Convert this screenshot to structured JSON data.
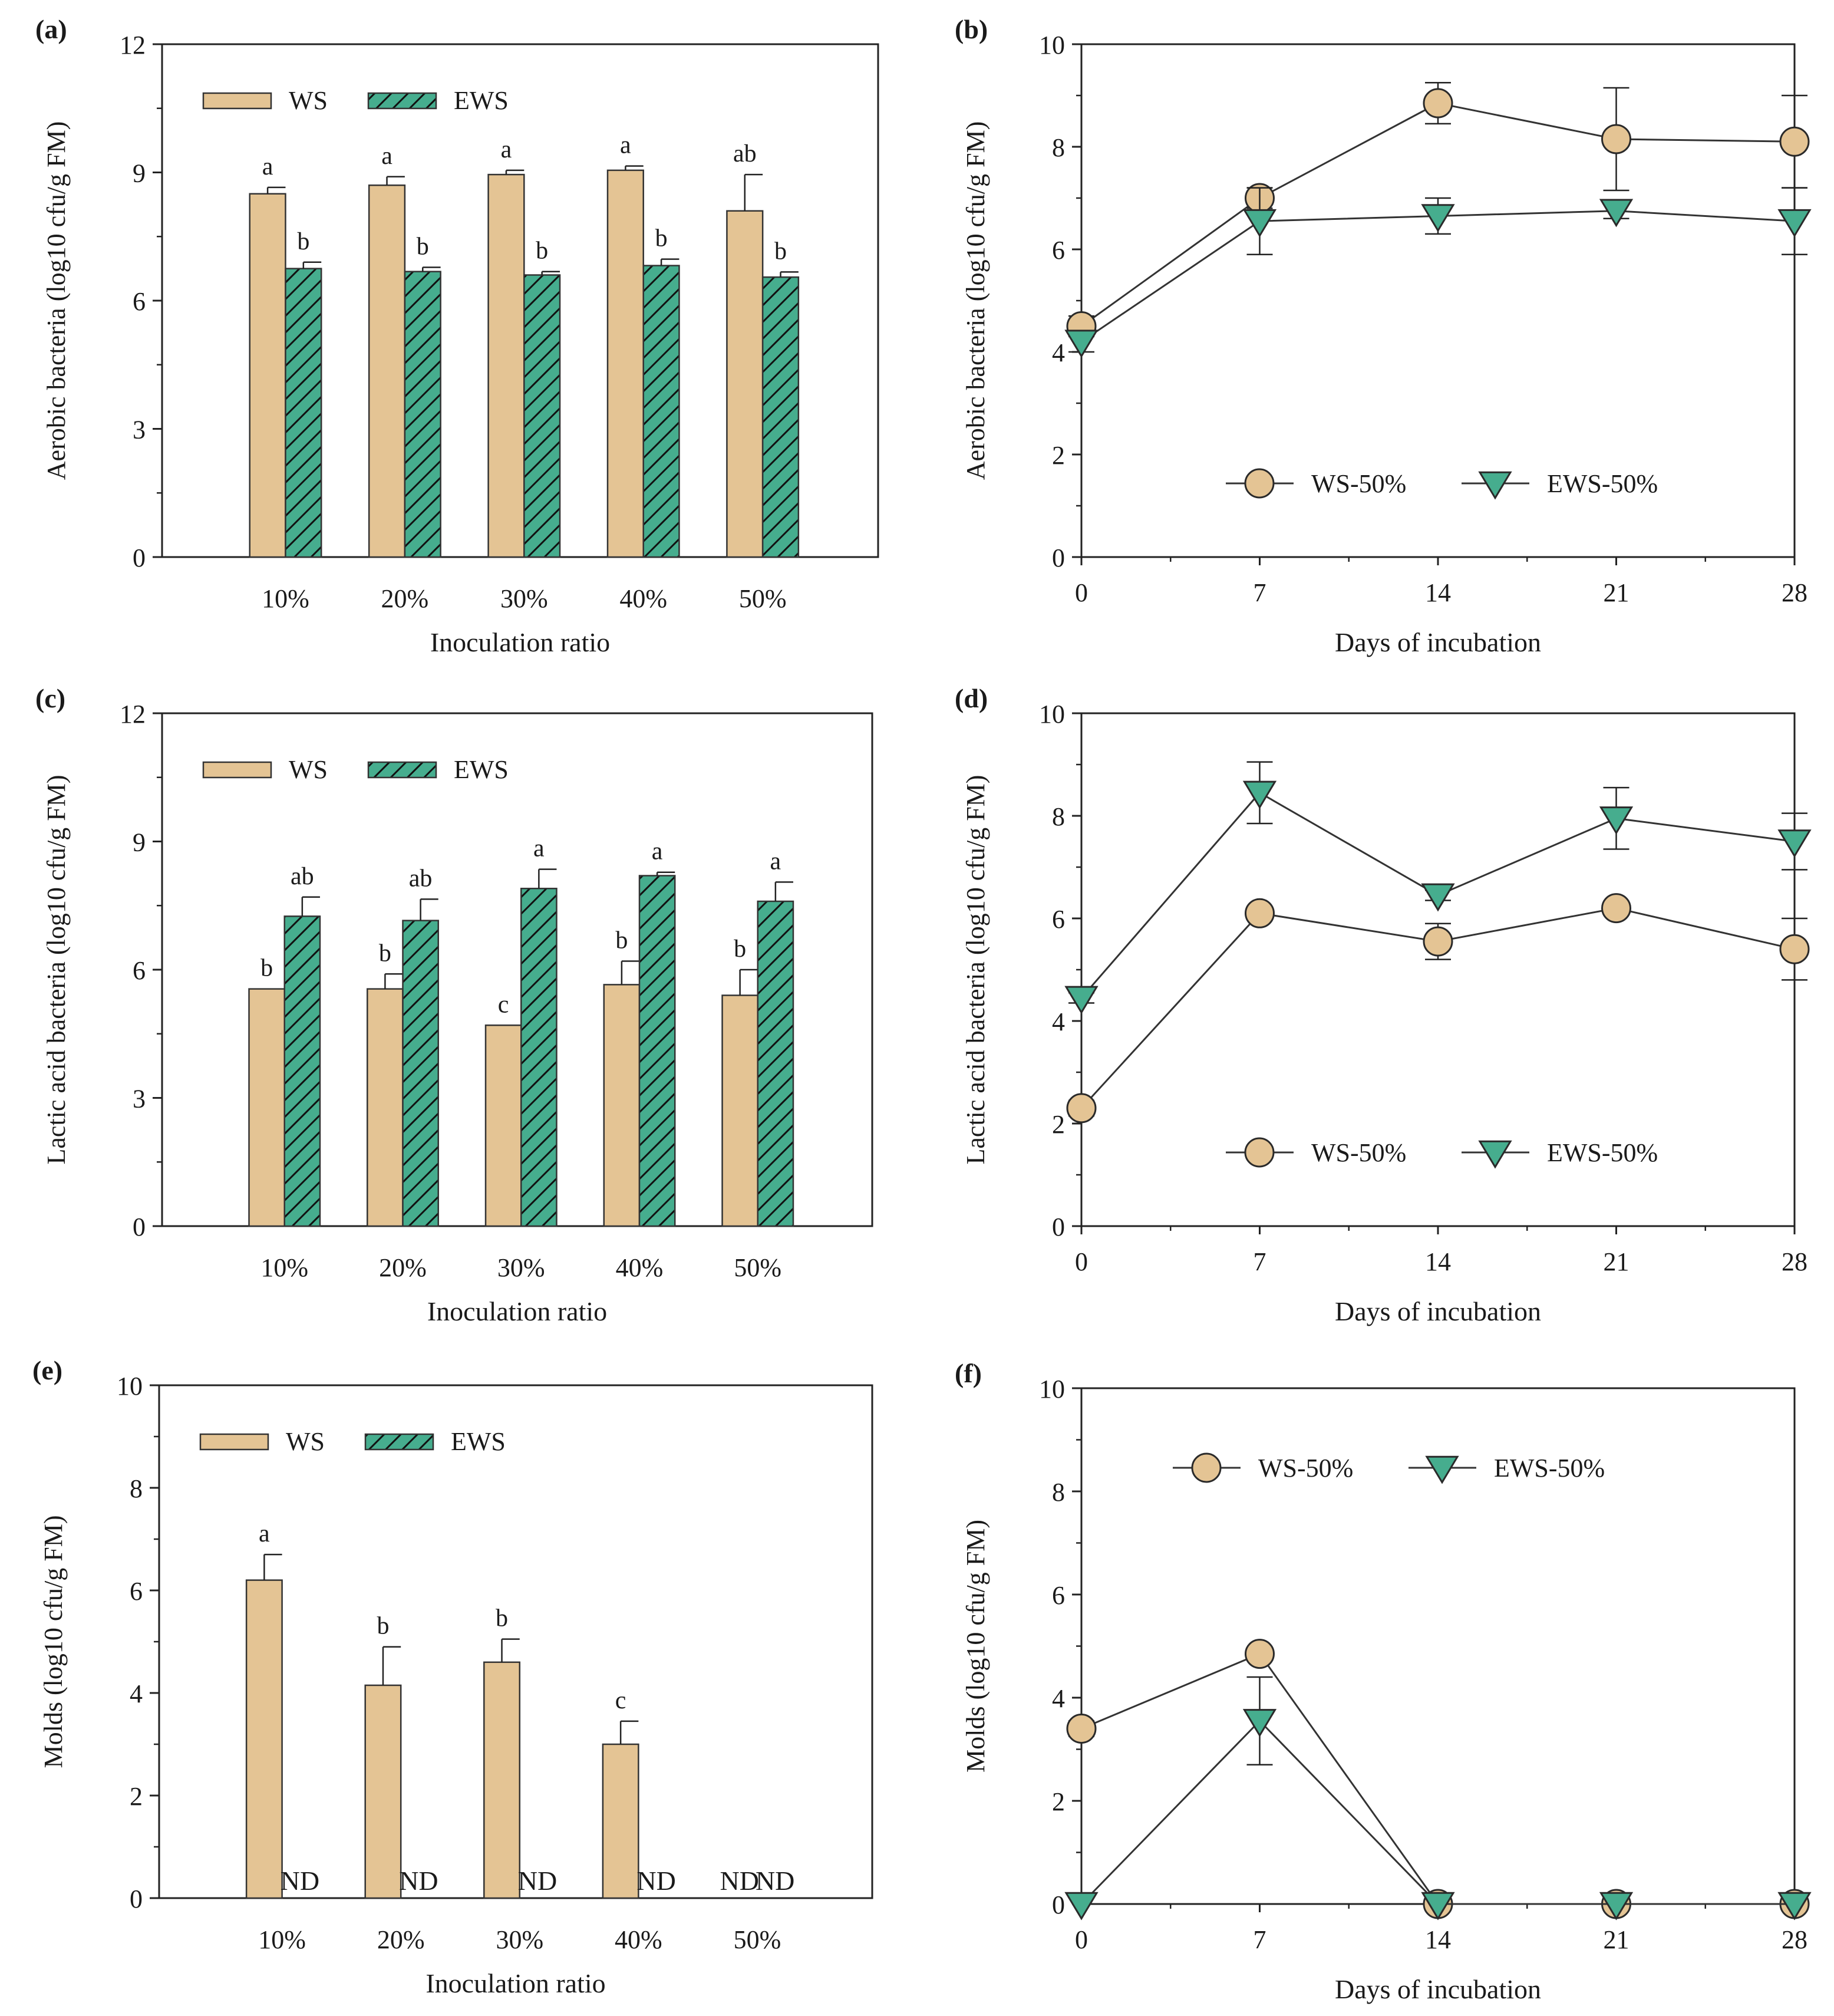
{
  "figure": {
    "colors": {
      "ws_fill": "#e4c494",
      "ews_fill": "#46ad8e",
      "ews_hatch": "#111111",
      "axis": "#222222",
      "marker_edge": "#2a2a2a"
    },
    "legend_bar": {
      "ws": "WS",
      "ews": "EWS"
    },
    "legend_line": {
      "ws": "WS-50%",
      "ews": "EWS-50%"
    },
    "nd_label": "ND"
  },
  "chart_data": [
    {
      "panel": "(a)",
      "type": "bar",
      "xlabel": "Inoculation ratio",
      "ylabel": "Aerobic bacteria  (log10 cfu/g FM)",
      "ylim": [
        0,
        12
      ],
      "yticks": [
        "0",
        "3",
        "6",
        "9",
        "12"
      ],
      "categories": [
        "10%",
        "20%",
        "30%",
        "40%",
        "50%"
      ],
      "legend_position": "top-left",
      "series": [
        {
          "name": "WS",
          "values": [
            8.5,
            8.7,
            8.95,
            9.05,
            8.1
          ],
          "errors": [
            0.15,
            0.2,
            0.1,
            0.1,
            0.85
          ],
          "letters": [
            "a",
            "a",
            "a",
            "a",
            "ab"
          ],
          "nd": [
            false,
            false,
            false,
            false,
            false
          ]
        },
        {
          "name": "EWS",
          "values": [
            6.75,
            6.68,
            6.6,
            6.82,
            6.55
          ],
          "errors": [
            0.15,
            0.1,
            0.08,
            0.15,
            0.12
          ],
          "letters": [
            "b",
            "b",
            "b",
            "b",
            "b"
          ],
          "nd": [
            false,
            false,
            false,
            false,
            false
          ]
        }
      ]
    },
    {
      "panel": "(b)",
      "type": "line",
      "xlabel": "Days of incubation",
      "ylabel": "Aerobic bacteria (log10 cfu/g FM)",
      "x": [
        0,
        7,
        14,
        21,
        28
      ],
      "xticks": [
        "0",
        "7",
        "14",
        "21",
        "28"
      ],
      "ylim": [
        0,
        10
      ],
      "yticks": [
        "0",
        "2",
        "4",
        "6",
        "8",
        "10"
      ],
      "legend_position": "bottom-center",
      "series": [
        {
          "name": "WS-50%",
          "values": [
            4.5,
            7.0,
            8.85,
            8.15,
            8.1
          ],
          "errors": [
            0.2,
            0.2,
            0.4,
            1.0,
            0.9
          ]
        },
        {
          "name": "EWS-50%",
          "values": [
            4.2,
            6.55,
            6.65,
            6.75,
            6.55
          ],
          "errors": [
            0.2,
            0.65,
            0.35,
            0.15,
            0.65
          ]
        }
      ]
    },
    {
      "panel": "(c)",
      "type": "bar",
      "xlabel": "Inoculation ratio",
      "ylabel": "Lactic acid bacteria  (log10 cfu/g FM)",
      "ylim": [
        0,
        12
      ],
      "yticks": [
        "0",
        "3",
        "6",
        "9",
        "12"
      ],
      "categories": [
        "10%",
        "20%",
        "30%",
        "40%",
        "50%"
      ],
      "legend_position": "top-left",
      "series": [
        {
          "name": "WS",
          "values": [
            5.55,
            5.55,
            4.7,
            5.65,
            5.4
          ],
          "errors": [
            0,
            0.35,
            0,
            0.55,
            0.6
          ],
          "letters": [
            "b",
            "b",
            "c",
            "b",
            "b"
          ],
          "nd": [
            false,
            false,
            false,
            false,
            false
          ]
        },
        {
          "name": "EWS",
          "values": [
            7.25,
            7.15,
            7.9,
            8.2,
            7.6
          ],
          "errors": [
            0.45,
            0.5,
            0.45,
            0.08,
            0.45
          ],
          "letters": [
            "ab",
            "ab",
            "a",
            "a",
            "a"
          ],
          "nd": [
            false,
            false,
            false,
            false,
            false
          ]
        }
      ]
    },
    {
      "panel": "(d)",
      "type": "line",
      "xlabel": "Days of incubation",
      "ylabel": "Lactic acid bacteria  (log10 cfu/g FM)",
      "x": [
        0,
        7,
        14,
        21,
        28
      ],
      "xticks": [
        "0",
        "7",
        "14",
        "21",
        "28"
      ],
      "ylim": [
        0,
        10
      ],
      "yticks": [
        "0",
        "2",
        "4",
        "6",
        "8",
        "10"
      ],
      "legend_position": "bottom-center",
      "series": [
        {
          "name": "WS-50%",
          "values": [
            2.3,
            6.1,
            5.55,
            6.2,
            5.4
          ],
          "errors": [
            0.15,
            0.1,
            0.35,
            0.1,
            0.6
          ]
        },
        {
          "name": "EWS-50%",
          "values": [
            4.45,
            8.45,
            6.45,
            7.95,
            7.5
          ],
          "errors": [
            0.1,
            0.6,
            0.1,
            0.6,
            0.55
          ]
        }
      ]
    },
    {
      "panel": "(e)",
      "type": "bar",
      "xlabel": "Inoculation ratio",
      "ylabel": "Molds  (log10 cfu/g FM)",
      "ylim": [
        0,
        10
      ],
      "yticks": [
        "0",
        "2",
        "4",
        "6",
        "8",
        "10"
      ],
      "categories": [
        "10%",
        "20%",
        "30%",
        "40%",
        "50%"
      ],
      "legend_position": "top-left",
      "series": [
        {
          "name": "WS",
          "values": [
            6.2,
            4.15,
            4.6,
            3.0,
            0
          ],
          "errors": [
            0.5,
            0.75,
            0.45,
            0.45,
            0
          ],
          "letters": [
            "a",
            "b",
            "b",
            "c",
            ""
          ],
          "nd": [
            false,
            false,
            false,
            false,
            true
          ]
        },
        {
          "name": "EWS",
          "values": [
            0,
            0,
            0,
            0,
            0
          ],
          "errors": [
            0,
            0,
            0,
            0,
            0
          ],
          "letters": [
            "",
            "",
            "",
            "",
            ""
          ],
          "nd": [
            true,
            true,
            true,
            true,
            true
          ]
        }
      ]
    },
    {
      "panel": "(f)",
      "type": "line",
      "xlabel": "Days of incubation",
      "ylabel": "Molds  (log10 cfu/g FM)",
      "x": [
        0,
        7,
        14,
        21,
        28
      ],
      "xticks": [
        "0",
        "7",
        "14",
        "21",
        "28"
      ],
      "ylim": [
        0,
        10
      ],
      "yticks": [
        "0",
        "2",
        "4",
        "6",
        "8",
        "10"
      ],
      "legend_position": "top-center",
      "series": [
        {
          "name": "WS-50%",
          "values": [
            3.4,
            4.85,
            0,
            0,
            0
          ],
          "errors": [
            0.15,
            0.1,
            0,
            0,
            0
          ]
        },
        {
          "name": "EWS-50%",
          "values": [
            0,
            3.55,
            0,
            0,
            0
          ],
          "errors": [
            0,
            0.85,
            0,
            0,
            0
          ]
        }
      ]
    }
  ]
}
